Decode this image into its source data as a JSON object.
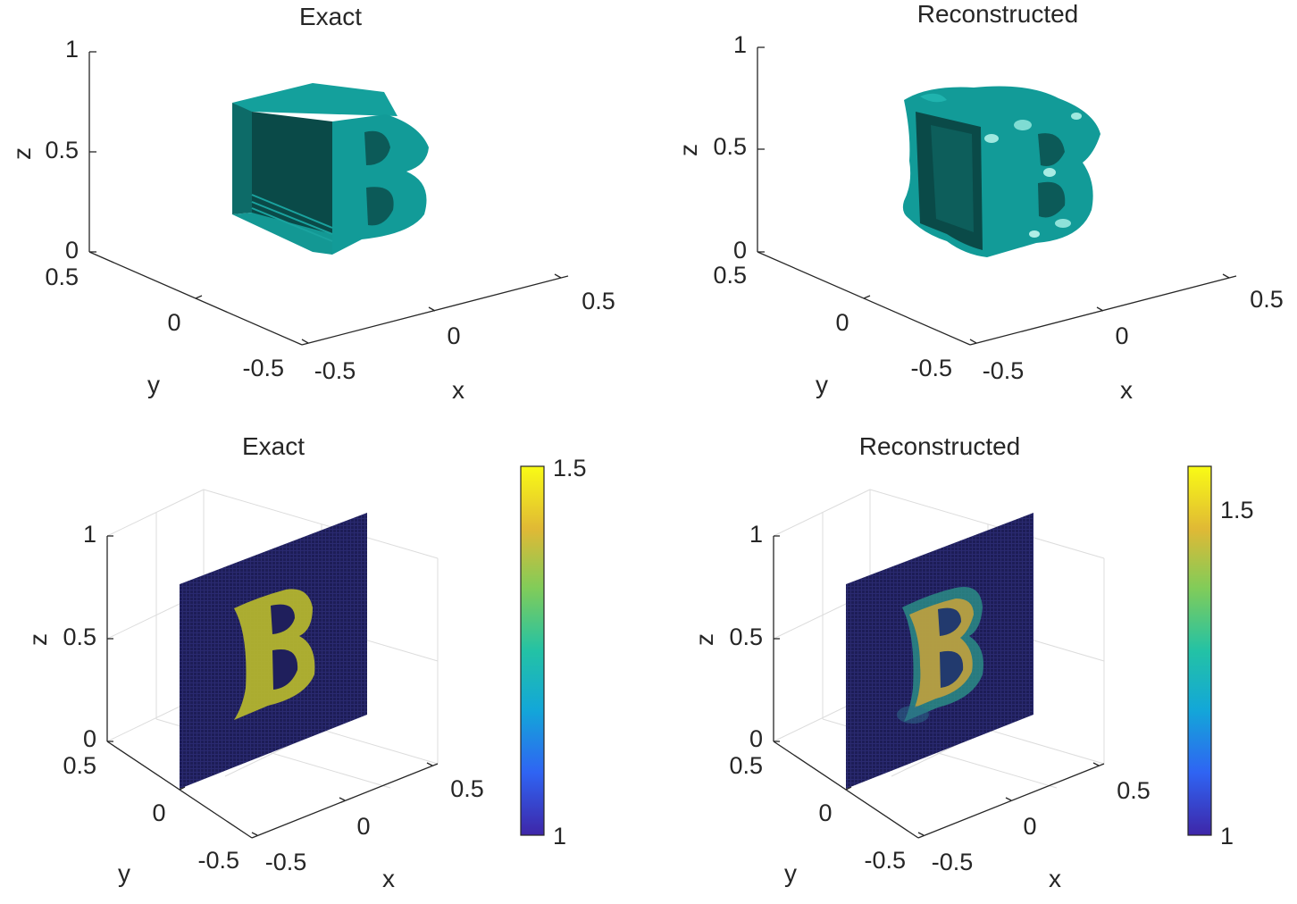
{
  "figure": {
    "colors": {
      "surface": "#129b98",
      "surface_dark": "#0c5a58",
      "surface_shade": "#0a4a48",
      "axis": "#262626",
      "grid": "#dcdcdc",
      "slice_bg": "#1f1f5c",
      "letter": "#b7b82c"
    },
    "colormap": [
      "#3e26a8",
      "#2f64f3",
      "#13a7d8",
      "#23c2a5",
      "#81cc59",
      "#e0b935",
      "#f9fb15"
    ]
  },
  "chart_data": [
    {
      "type": "3d-isosurface",
      "title": "Exact",
      "xlabel": "x",
      "ylabel": "y",
      "zlabel": "z",
      "xlim": [
        -0.5,
        0.5
      ],
      "ylim": [
        -0.5,
        0.5
      ],
      "zlim": [
        0,
        1
      ],
      "x_ticks": [
        "-0.5",
        "0",
        "0.5"
      ],
      "y_ticks": [
        "-0.5",
        "0",
        "0.5"
      ],
      "z_ticks": [
        "0",
        "0.5",
        "1"
      ],
      "object": "letter B",
      "grid": false
    },
    {
      "type": "3d-isosurface",
      "title": "Reconstructed",
      "xlabel": "x",
      "ylabel": "y",
      "zlabel": "z",
      "xlim": [
        -0.5,
        0.5
      ],
      "ylim": [
        -0.5,
        0.5
      ],
      "zlim": [
        0,
        1
      ],
      "x_ticks": [
        "-0.5",
        "0",
        "0.5"
      ],
      "y_ticks": [
        "-0.5",
        "0",
        "0.5"
      ],
      "z_ticks": [
        "0",
        "0.5",
        "1"
      ],
      "object": "letter B",
      "grid": false
    },
    {
      "type": "3d-slice-heatmap",
      "title": "Exact",
      "xlabel": "x",
      "ylabel": "y",
      "zlabel": "z",
      "xlim": [
        -0.5,
        0.5
      ],
      "ylim": [
        -0.5,
        0.5
      ],
      "zlim": [
        0,
        1
      ],
      "x_ticks": [
        "-0.5",
        "0",
        "0.5"
      ],
      "y_ticks": [
        "-0.5",
        "0",
        "0.5"
      ],
      "z_ticks": [
        "0",
        "0.5",
        "1"
      ],
      "slice_value_background": 1.0,
      "slice_value_letter": 1.5,
      "colorbar": {
        "min": 1,
        "max": 1.5,
        "ticks": [
          "1",
          "1.5"
        ]
      },
      "grid": true
    },
    {
      "type": "3d-slice-heatmap",
      "title": "Reconstructed",
      "xlabel": "x",
      "ylabel": "y",
      "zlabel": "z",
      "xlim": [
        -0.5,
        0.5
      ],
      "ylim": [
        -0.5,
        0.5
      ],
      "zlim": [
        0,
        1
      ],
      "x_ticks": [
        "-0.5",
        "0",
        "0.5"
      ],
      "y_ticks": [
        "-0.5",
        "0",
        "0.5"
      ],
      "z_ticks": [
        "0",
        "0.5",
        "1"
      ],
      "slice_value_background": 1.0,
      "slice_value_letter": 1.45,
      "colorbar": {
        "min": 1,
        "max": 1.6,
        "ticks": [
          "1",
          "1.5"
        ]
      },
      "grid": true
    }
  ]
}
